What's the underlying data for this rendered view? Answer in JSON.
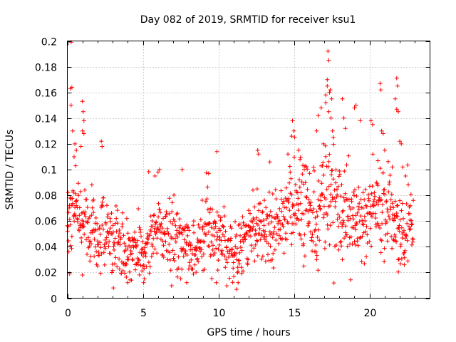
{
  "chart_data": {
    "type": "scatter",
    "title": "Day 082 of 2019, SRMTID for receiver ksu1",
    "xlabel": "GPS time / hours",
    "ylabel": "SRMTID / TECUs",
    "xlim": [
      0,
      24
    ],
    "ylim": [
      0,
      0.2
    ],
    "xticks": [
      0,
      5,
      10,
      15,
      20
    ],
    "yticks": [
      0,
      0.02,
      0.04,
      0.06,
      0.08,
      0.1,
      0.12,
      0.14,
      0.16,
      0.18,
      0.2
    ],
    "xtick_labels": [
      "0",
      "5",
      "10",
      "15",
      "20"
    ],
    "ytick_labels": [
      "0",
      "0.02",
      "0.04",
      "0.06",
      "0.08",
      "0.1",
      "0.12",
      "0.14",
      "0.16",
      "0.18",
      "0.2"
    ],
    "grid": true,
    "marker": "+",
    "color": "#ff0000",
    "time_range_hours": [
      0,
      22.9
    ],
    "sample_step_hours": 0.02,
    "trend": [
      {
        "x": 0.0,
        "y": 0.052
      },
      {
        "x": 0.3,
        "y": 0.072
      },
      {
        "x": 0.6,
        "y": 0.07
      },
      {
        "x": 1.0,
        "y": 0.065
      },
      {
        "x": 1.5,
        "y": 0.05
      },
      {
        "x": 2.0,
        "y": 0.048
      },
      {
        "x": 2.5,
        "y": 0.052
      },
      {
        "x": 3.0,
        "y": 0.042
      },
      {
        "x": 3.5,
        "y": 0.038
      },
      {
        "x": 4.0,
        "y": 0.036
      },
      {
        "x": 4.5,
        "y": 0.038
      },
      {
        "x": 5.0,
        "y": 0.036
      },
      {
        "x": 5.5,
        "y": 0.042
      },
      {
        "x": 6.0,
        "y": 0.055
      },
      {
        "x": 6.5,
        "y": 0.05
      },
      {
        "x": 7.0,
        "y": 0.042
      },
      {
        "x": 7.5,
        "y": 0.045
      },
      {
        "x": 8.0,
        "y": 0.04
      },
      {
        "x": 8.5,
        "y": 0.038
      },
      {
        "x": 9.0,
        "y": 0.045
      },
      {
        "x": 9.5,
        "y": 0.05
      },
      {
        "x": 10.0,
        "y": 0.042
      },
      {
        "x": 10.5,
        "y": 0.04
      },
      {
        "x": 11.0,
        "y": 0.038
      },
      {
        "x": 11.5,
        "y": 0.045
      },
      {
        "x": 12.0,
        "y": 0.05
      },
      {
        "x": 12.5,
        "y": 0.052
      },
      {
        "x": 13.0,
        "y": 0.058
      },
      {
        "x": 13.5,
        "y": 0.055
      },
      {
        "x": 14.0,
        "y": 0.06
      },
      {
        "x": 14.5,
        "y": 0.068
      },
      {
        "x": 15.0,
        "y": 0.072
      },
      {
        "x": 15.5,
        "y": 0.07
      },
      {
        "x": 16.0,
        "y": 0.068
      },
      {
        "x": 16.5,
        "y": 0.066
      },
      {
        "x": 17.0,
        "y": 0.078
      },
      {
        "x": 17.3,
        "y": 0.085
      },
      {
        "x": 17.6,
        "y": 0.075
      },
      {
        "x": 18.0,
        "y": 0.065
      },
      {
        "x": 18.5,
        "y": 0.055
      },
      {
        "x": 19.0,
        "y": 0.06
      },
      {
        "x": 19.5,
        "y": 0.062
      },
      {
        "x": 20.0,
        "y": 0.07
      },
      {
        "x": 20.5,
        "y": 0.072
      },
      {
        "x": 21.0,
        "y": 0.07
      },
      {
        "x": 21.5,
        "y": 0.065
      },
      {
        "x": 22.0,
        "y": 0.055
      },
      {
        "x": 22.5,
        "y": 0.055
      },
      {
        "x": 22.9,
        "y": 0.06
      }
    ],
    "spread": [
      {
        "x": 0.0,
        "s": 0.012
      },
      {
        "x": 3.0,
        "s": 0.012
      },
      {
        "x": 6.0,
        "s": 0.013
      },
      {
        "x": 10.0,
        "s": 0.012
      },
      {
        "x": 12.0,
        "s": 0.012
      },
      {
        "x": 14.0,
        "s": 0.014
      },
      {
        "x": 15.0,
        "s": 0.016
      },
      {
        "x": 17.0,
        "s": 0.022
      },
      {
        "x": 19.0,
        "s": 0.016
      },
      {
        "x": 21.0,
        "s": 0.018
      },
      {
        "x": 22.9,
        "s": 0.014
      }
    ],
    "notable_points": [
      {
        "x": 0.25,
        "y": 0.199
      },
      {
        "x": 0.2,
        "y": 0.163
      },
      {
        "x": 0.3,
        "y": 0.164
      },
      {
        "x": 0.25,
        "y": 0.15
      },
      {
        "x": 0.35,
        "y": 0.13
      },
      {
        "x": 0.5,
        "y": 0.12
      },
      {
        "x": 0.6,
        "y": 0.115
      },
      {
        "x": 0.55,
        "y": 0.103
      },
      {
        "x": 0.45,
        "y": 0.11
      },
      {
        "x": 1.0,
        "y": 0.153
      },
      {
        "x": 1.05,
        "y": 0.145
      },
      {
        "x": 1.1,
        "y": 0.138
      },
      {
        "x": 1.0,
        "y": 0.13
      },
      {
        "x": 1.1,
        "y": 0.128
      },
      {
        "x": 0.9,
        "y": 0.118
      },
      {
        "x": 2.25,
        "y": 0.122
      },
      {
        "x": 2.3,
        "y": 0.118
      },
      {
        "x": 3.05,
        "y": 0.008
      },
      {
        "x": 4.0,
        "y": 0.012
      },
      {
        "x": 5.05,
        "y": 0.012
      },
      {
        "x": 5.1,
        "y": 0.015
      },
      {
        "x": 7.9,
        "y": 0.012
      },
      {
        "x": 11.3,
        "y": 0.012
      },
      {
        "x": 6.1,
        "y": 0.1
      },
      {
        "x": 6.0,
        "y": 0.098
      },
      {
        "x": 5.8,
        "y": 0.095
      },
      {
        "x": 7.6,
        "y": 0.1
      },
      {
        "x": 9.35,
        "y": 0.097
      },
      {
        "x": 9.9,
        "y": 0.114
      },
      {
        "x": 12.6,
        "y": 0.115
      },
      {
        "x": 12.65,
        "y": 0.112
      },
      {
        "x": 13.4,
        "y": 0.106
      },
      {
        "x": 14.6,
        "y": 0.112
      },
      {
        "x": 14.85,
        "y": 0.126
      },
      {
        "x": 14.9,
        "y": 0.138
      },
      {
        "x": 15.0,
        "y": 0.13
      },
      {
        "x": 15.3,
        "y": 0.115
      },
      {
        "x": 15.4,
        "y": 0.108
      },
      {
        "x": 15.65,
        "y": 0.025
      },
      {
        "x": 16.8,
        "y": 0.148
      },
      {
        "x": 16.95,
        "y": 0.12
      },
      {
        "x": 17.1,
        "y": 0.152
      },
      {
        "x": 17.2,
        "y": 0.17
      },
      {
        "x": 17.25,
        "y": 0.192
      },
      {
        "x": 17.3,
        "y": 0.185
      },
      {
        "x": 17.2,
        "y": 0.165
      },
      {
        "x": 17.35,
        "y": 0.16
      },
      {
        "x": 17.4,
        "y": 0.162
      },
      {
        "x": 17.1,
        "y": 0.158
      },
      {
        "x": 17.5,
        "y": 0.155
      },
      {
        "x": 17.3,
        "y": 0.145
      },
      {
        "x": 17.45,
        "y": 0.14
      },
      {
        "x": 17.55,
        "y": 0.13
      },
      {
        "x": 17.6,
        "y": 0.125
      },
      {
        "x": 16.6,
        "y": 0.142
      },
      {
        "x": 16.5,
        "y": 0.13
      },
      {
        "x": 18.2,
        "y": 0.155
      },
      {
        "x": 18.3,
        "y": 0.14
      },
      {
        "x": 18.4,
        "y": 0.132
      },
      {
        "x": 19.1,
        "y": 0.15
      },
      {
        "x": 19.0,
        "y": 0.148
      },
      {
        "x": 20.1,
        "y": 0.138
      },
      {
        "x": 20.2,
        "y": 0.135
      },
      {
        "x": 20.7,
        "y": 0.167
      },
      {
        "x": 20.75,
        "y": 0.162
      },
      {
        "x": 20.8,
        "y": 0.13
      },
      {
        "x": 20.9,
        "y": 0.128
      },
      {
        "x": 21.0,
        "y": 0.115
      },
      {
        "x": 21.8,
        "y": 0.171
      },
      {
        "x": 21.85,
        "y": 0.165
      },
      {
        "x": 21.8,
        "y": 0.147
      },
      {
        "x": 21.9,
        "y": 0.145
      },
      {
        "x": 21.7,
        "y": 0.155
      },
      {
        "x": 22.0,
        "y": 0.122
      },
      {
        "x": 22.1,
        "y": 0.12
      },
      {
        "x": 21.5,
        "y": 0.102
      },
      {
        "x": 22.2,
        "y": 0.102
      },
      {
        "x": 22.3,
        "y": 0.026
      },
      {
        "x": 21.9,
        "y": 0.03
      },
      {
        "x": 18.2,
        "y": 0.03
      },
      {
        "x": 16.5,
        "y": 0.03
      },
      {
        "x": 0.15,
        "y": 0.019
      },
      {
        "x": 0.1,
        "y": 0.036
      },
      {
        "x": 1.0,
        "y": 0.018
      },
      {
        "x": 2.0,
        "y": 0.025
      }
    ]
  }
}
